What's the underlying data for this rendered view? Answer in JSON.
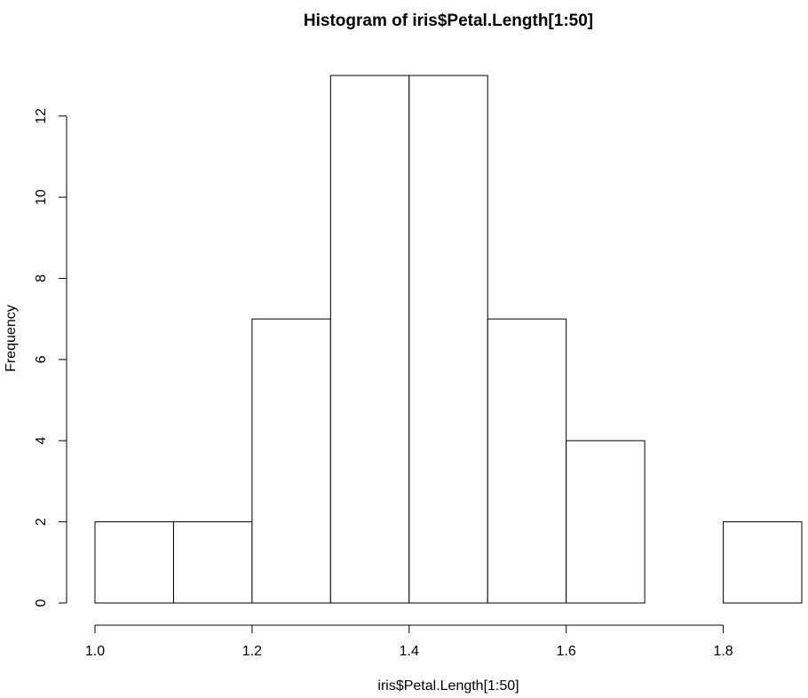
{
  "chart_data": {
    "type": "bar",
    "title": "Histogram of iris$Petal.Length[1:50]",
    "xlabel": "iris$Petal.Length[1:50]",
    "ylabel": "Frequency",
    "bins": [
      {
        "start": 1.0,
        "end": 1.1,
        "count": 2
      },
      {
        "start": 1.1,
        "end": 1.2,
        "count": 2
      },
      {
        "start": 1.2,
        "end": 1.3,
        "count": 7
      },
      {
        "start": 1.3,
        "end": 1.4,
        "count": 13
      },
      {
        "start": 1.4,
        "end": 1.5,
        "count": 13
      },
      {
        "start": 1.5,
        "end": 1.6,
        "count": 7
      },
      {
        "start": 1.6,
        "end": 1.7,
        "count": 4
      },
      {
        "start": 1.7,
        "end": 1.8,
        "count": 0
      },
      {
        "start": 1.8,
        "end": 1.9,
        "count": 2
      }
    ],
    "xlim": [
      1.0,
      1.9
    ],
    "ylim": [
      0,
      13
    ],
    "x_ticks": [
      1.0,
      1.2,
      1.4,
      1.6,
      1.8
    ],
    "x_tick_labels": [
      "1.0",
      "1.2",
      "1.4",
      "1.6",
      "1.8"
    ],
    "y_ticks": [
      0,
      2,
      4,
      6,
      8,
      10,
      12
    ],
    "y_tick_labels": [
      "0",
      "2",
      "4",
      "6",
      "8",
      "10",
      "12"
    ],
    "grid": false,
    "legend": "none",
    "bar_fill": "#ffffff",
    "bar_stroke": "#000000"
  }
}
